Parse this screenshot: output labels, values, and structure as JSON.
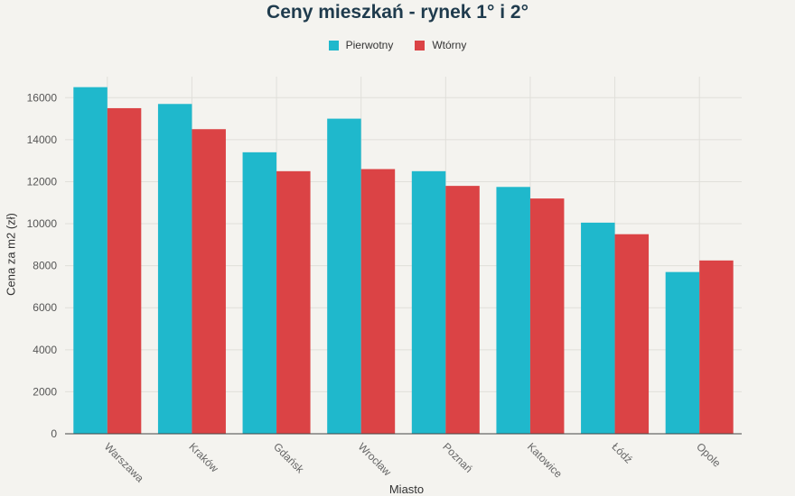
{
  "chart_data": {
    "type": "bar",
    "title": "Ceny mieszkań - rynek 1° i 2°",
    "xlabel": "Miasto",
    "ylabel": "Cena za m2 (zł)",
    "categories": [
      "Warszawa",
      "Kraków",
      "Gdańsk",
      "Wrocław",
      "Poznań",
      "Katowice",
      "Łódź",
      "Opole"
    ],
    "series": [
      {
        "name": "Pierwotny",
        "color": "#1fb8cc",
        "values": [
          16500,
          15700,
          13400,
          15000,
          12500,
          11750,
          10050,
          7700
        ]
      },
      {
        "name": "Wtórny",
        "color": "#db4345",
        "values": [
          15500,
          14500,
          12500,
          12600,
          11800,
          11200,
          9500,
          8250
        ]
      }
    ],
    "ylim": [
      0,
      17000
    ],
    "yticks": [
      0,
      2000,
      4000,
      6000,
      8000,
      10000,
      12000,
      14000,
      16000
    ],
    "grid": true,
    "legend_position": "top-center"
  }
}
